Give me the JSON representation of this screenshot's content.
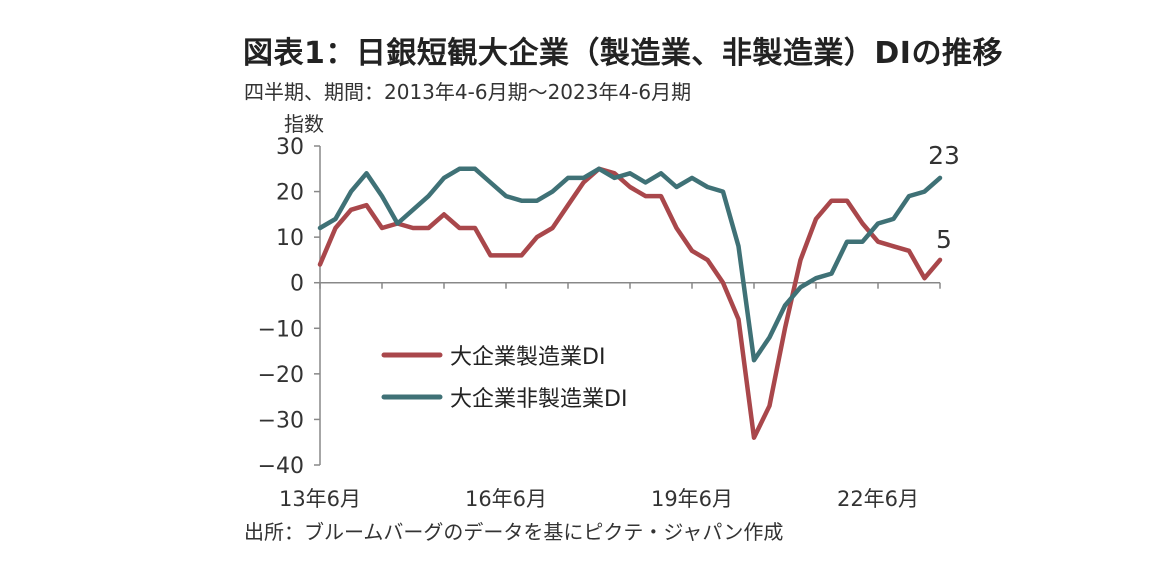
{
  "title": "図表1：日銀短観大企業（製造業、非製造業）DIの推移",
  "subtitle": "四半期、期間：2013年4-6月期～2023年4-6月期",
  "source": "出所：ブルームバーグのデータを基にピクテ・ジャパン作成",
  "chart_data": {
    "type": "line",
    "ylabel": "指数",
    "ylim": [
      -40,
      30
    ],
    "yticks": [
      30,
      20,
      10,
      0,
      -10,
      -20,
      -30,
      -40
    ],
    "x_ticks": [
      "13年6月",
      "16年6月",
      "19年6月",
      "22年6月"
    ],
    "x": [
      "2013-06",
      "2013-09",
      "2013-12",
      "2014-03",
      "2014-06",
      "2014-09",
      "2014-12",
      "2015-03",
      "2015-06",
      "2015-09",
      "2015-12",
      "2016-03",
      "2016-06",
      "2016-09",
      "2016-12",
      "2017-03",
      "2017-06",
      "2017-09",
      "2017-12",
      "2018-03",
      "2018-06",
      "2018-09",
      "2018-12",
      "2019-03",
      "2019-06",
      "2019-09",
      "2019-12",
      "2020-03",
      "2020-06",
      "2020-09",
      "2020-12",
      "2021-03",
      "2021-06",
      "2021-09",
      "2021-12",
      "2022-03",
      "2022-06",
      "2022-09",
      "2022-12",
      "2023-03",
      "2023-06"
    ],
    "series": [
      {
        "name": "大企業製造業DI",
        "color": "#a9474b",
        "values": [
          4,
          12,
          16,
          17,
          12,
          13,
          12,
          12,
          15,
          12,
          12,
          6,
          6,
          6,
          10,
          12,
          17,
          22,
          25,
          24,
          21,
          19,
          19,
          12,
          7,
          5,
          0,
          -8,
          -34,
          -27,
          -10,
          5,
          14,
          18,
          18,
          13,
          9,
          8,
          7,
          1,
          5
        ]
      },
      {
        "name": "大企業非製造業DI",
        "color": "#3f7176",
        "values": [
          12,
          14,
          20,
          24,
          19,
          13,
          16,
          19,
          23,
          25,
          25,
          22,
          19,
          18,
          18,
          20,
          23,
          23,
          25,
          23,
          24,
          22,
          24,
          21,
          23,
          21,
          20,
          8,
          -17,
          -12,
          -5,
          -1,
          1,
          2,
          9,
          9,
          13,
          14,
          19,
          20,
          23
        ]
      }
    ],
    "end_labels": [
      "5",
      "23"
    ],
    "grid": false,
    "legend": "lower-left inside"
  }
}
